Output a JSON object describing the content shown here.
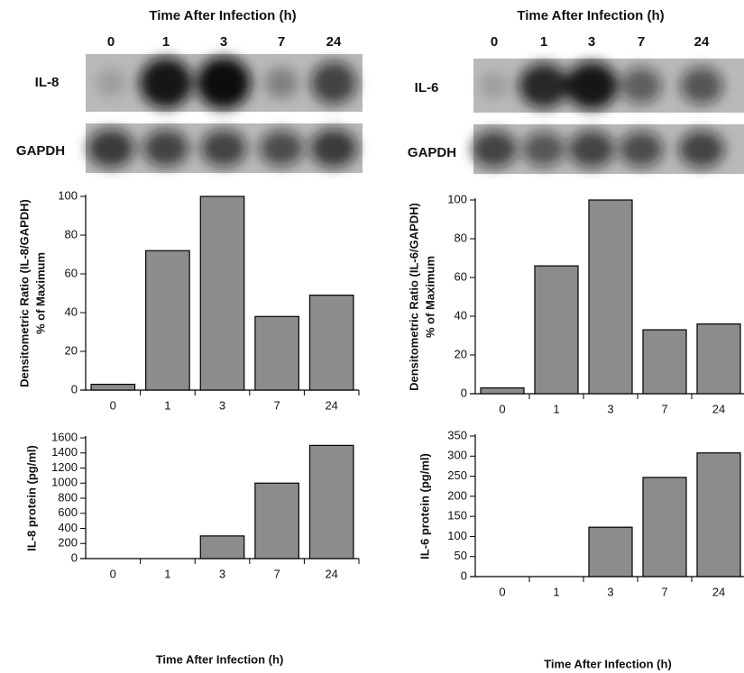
{
  "blots": [
    {
      "title": "Time After Infection (h)",
      "lanes": [
        "0",
        "1",
        "3",
        "7",
        "24"
      ],
      "rows": [
        "IL-8",
        "GAPDH"
      ]
    },
    {
      "title": "Time After Infection (h)",
      "lanes": [
        "0",
        "1",
        "3",
        "7",
        "24"
      ],
      "rows": [
        "IL-6",
        "GAPDH"
      ]
    }
  ],
  "chart_data": [
    {
      "type": "bar",
      "ylabel": [
        "Densitometric Ratio (IL-8/GAPDH)",
        "% of Maximum"
      ],
      "categories": [
        "0",
        "1",
        "3",
        "7",
        "24"
      ],
      "values": [
        3,
        72,
        100,
        38,
        49
      ],
      "color": "#8c8c8c",
      "ylim": [
        0,
        100
      ],
      "yticks": [
        0,
        20,
        40,
        60,
        80,
        100
      ]
    },
    {
      "type": "bar",
      "ylabel": [
        "Densitometric Ratio (IL-6/GAPDH)",
        "% of Maximum"
      ],
      "categories": [
        "0",
        "1",
        "3",
        "7",
        "24"
      ],
      "values": [
        3,
        66,
        100,
        33,
        36
      ],
      "color": "#8c8c8c",
      "ylim": [
        0,
        100
      ],
      "yticks": [
        0,
        20,
        40,
        60,
        80,
        100
      ]
    },
    {
      "type": "bar",
      "ylabel": [
        "IL-8 protein (pg/ml)"
      ],
      "xlabel": "Time After Infection (h)",
      "categories": [
        "0",
        "1",
        "3",
        "7",
        "24"
      ],
      "values": [
        0,
        0,
        300,
        1000,
        1500
      ],
      "color": "#8c8c8c",
      "ylim": [
        0,
        1600
      ],
      "yticks": [
        0,
        200,
        400,
        600,
        800,
        1000,
        1200,
        1400,
        1600
      ]
    },
    {
      "type": "bar",
      "ylabel": [
        "IL-6 protein (pg/ml)"
      ],
      "xlabel": "Time After Infection (h)",
      "categories": [
        "0",
        "1",
        "3",
        "7",
        "24"
      ],
      "values": [
        0,
        0,
        123,
        247,
        308
      ],
      "color": "#8c8c8c",
      "ylim": [
        0,
        350
      ],
      "yticks": [
        0,
        50,
        100,
        150,
        200,
        250,
        300,
        350
      ]
    }
  ]
}
